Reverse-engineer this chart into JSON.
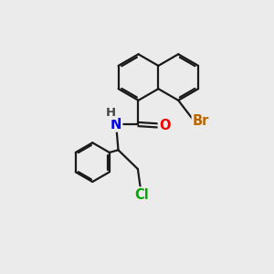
{
  "bg_color": "#ebebeb",
  "bond_color": "#1a1a1a",
  "bond_width": 1.6,
  "atom_colors": {
    "N": "#0000ee",
    "O": "#ee0000",
    "Br": "#bb6600",
    "Cl": "#00aa00",
    "H": "#444444"
  },
  "font_size": 10.5
}
